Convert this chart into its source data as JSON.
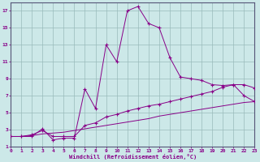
{
  "xlabel": "Windchill (Refroidissement éolien,°C)",
  "bg_color": "#cce8e8",
  "line_color": "#880088",
  "grid_color": "#99bbbb",
  "xlim": [
    0,
    23
  ],
  "ylim": [
    1,
    18
  ],
  "xticks": [
    0,
    1,
    2,
    3,
    4,
    5,
    6,
    7,
    8,
    9,
    10,
    11,
    12,
    13,
    14,
    15,
    16,
    17,
    18,
    19,
    20,
    21,
    22,
    23
  ],
  "yticks": [
    1,
    3,
    5,
    7,
    9,
    11,
    13,
    15,
    17
  ],
  "series1_x": [
    0,
    1,
    2,
    3,
    4,
    5,
    6,
    7,
    8,
    9,
    10,
    11,
    12,
    13,
    14,
    15,
    16,
    17,
    18,
    19,
    20,
    21,
    22,
    23
  ],
  "series1_y": [
    2.2,
    2.2,
    2.2,
    3.1,
    1.8,
    2.0,
    2.0,
    7.8,
    5.5,
    13.0,
    11.0,
    17.0,
    17.5,
    15.5,
    15.0,
    11.5,
    9.2,
    9.0,
    8.8,
    8.3,
    8.2,
    8.3,
    7.0,
    6.3
  ],
  "series2_x": [
    0,
    1,
    2,
    3,
    4,
    5,
    6,
    7,
    8,
    9,
    10,
    11,
    12,
    13,
    14,
    15,
    16,
    17,
    18,
    19,
    20,
    21,
    22,
    23
  ],
  "series2_y": [
    2.2,
    2.2,
    2.4,
    2.9,
    2.2,
    2.2,
    2.2,
    3.5,
    3.8,
    4.5,
    4.8,
    5.2,
    5.5,
    5.8,
    6.0,
    6.3,
    6.6,
    6.9,
    7.2,
    7.5,
    8.0,
    8.3,
    8.3,
    7.9
  ],
  "series3_x": [
    0,
    1,
    2,
    3,
    4,
    5,
    6,
    7,
    8,
    9,
    10,
    11,
    12,
    13,
    14,
    15,
    16,
    17,
    18,
    19,
    20,
    21,
    22,
    23
  ],
  "series3_y": [
    2.2,
    2.2,
    2.3,
    2.5,
    2.6,
    2.7,
    2.9,
    3.1,
    3.3,
    3.5,
    3.7,
    3.9,
    4.1,
    4.3,
    4.6,
    4.8,
    5.0,
    5.2,
    5.4,
    5.6,
    5.8,
    6.0,
    6.2,
    6.3
  ]
}
